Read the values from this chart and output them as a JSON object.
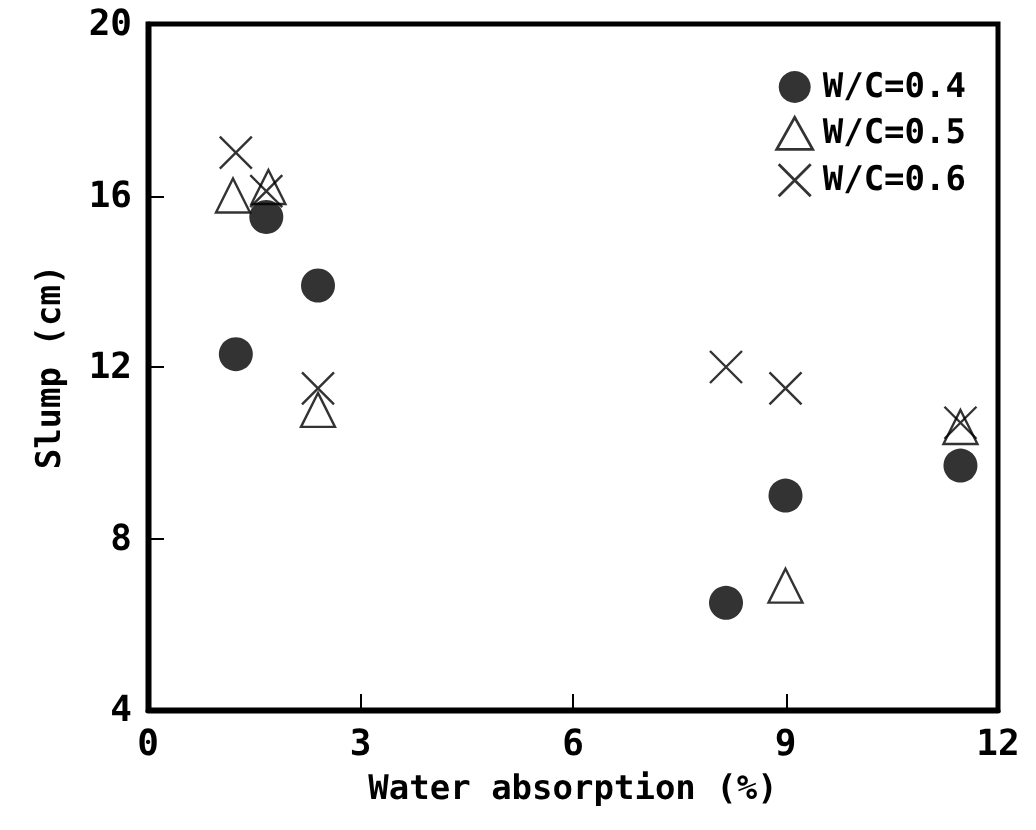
{
  "chart_data": {
    "type": "scatter",
    "xlabel": "Water absorption (%)",
    "ylabel": "Slump (cm)",
    "xlim": [
      0,
      12
    ],
    "xticks": [
      0,
      3,
      6,
      9,
      12
    ],
    "ylim": [
      4,
      20
    ],
    "yticks": [
      4,
      8,
      12,
      16,
      20
    ],
    "grid": false,
    "legend": "top right",
    "series": [
      {
        "name": "W/C=0.4",
        "color": "#000000",
        "marker": "circle",
        "x": [
          1.24,
          1.67,
          2.4,
          8.16,
          9.0,
          11.47
        ],
        "values": [
          12.3,
          15.5,
          13.9,
          6.5,
          9.0,
          9.7
        ]
      },
      {
        "name": "W/C=0.5",
        "color": "#000000",
        "marker": "triangle",
        "x": [
          1.2,
          1.7,
          2.4,
          9.0,
          11.47
        ],
        "values": [
          16.0,
          16.2,
          11.0,
          6.9,
          10.6
        ]
      },
      {
        "name": "W/C=0.6",
        "color": "#000000",
        "marker": "cross",
        "x": [
          1.24,
          1.67,
          2.4,
          8.16,
          9.0,
          11.47
        ],
        "values": [
          17.0,
          16.1,
          11.5,
          12.0,
          11.5,
          10.7
        ]
      }
    ]
  }
}
